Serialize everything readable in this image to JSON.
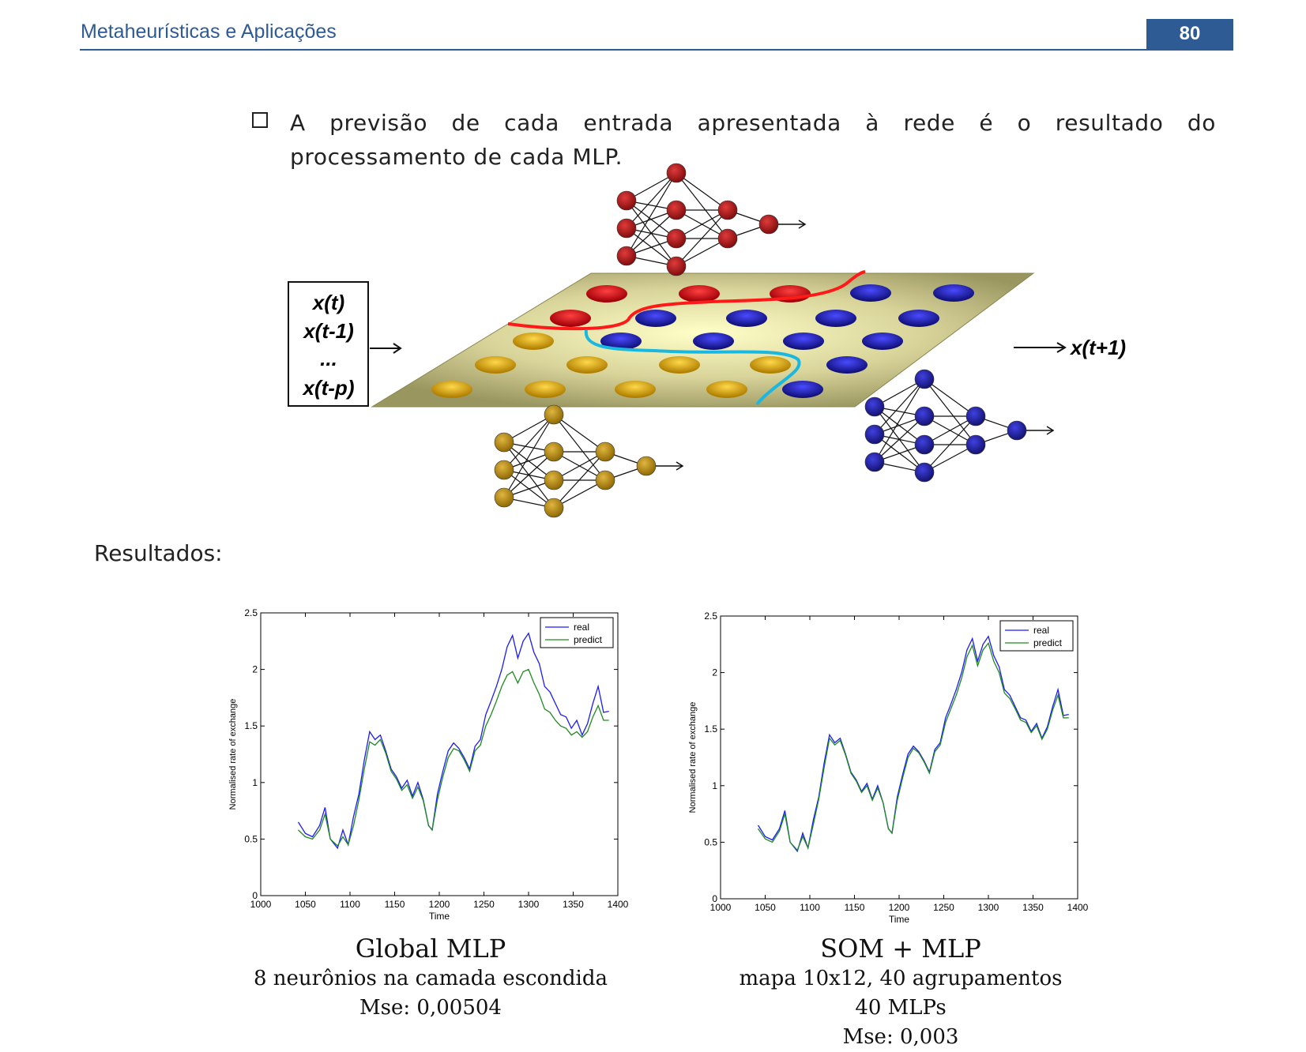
{
  "header": {
    "title": "Metaheurísticas e Aplicações",
    "page_number": "80"
  },
  "bullet_text": "A previsão de cada entrada apresentada à rede é o resultado do processamento de cada MLP.",
  "diagram": {
    "input_lines": [
      "x(t)",
      "x(t-1)",
      "...",
      "x(t-p)"
    ],
    "output_label": "x(t+1)",
    "colors": {
      "red": "#c8101a",
      "blue": "#1c1ca8",
      "gold": "#d4a300",
      "plane": "#b8b37a"
    }
  },
  "section_label": "Resultados:",
  "chart_data": [
    {
      "type": "line",
      "xlabel": "Time",
      "ylabel": "Normalised rate of exchange",
      "xlim": [
        1000,
        1400
      ],
      "ylim": [
        0,
        2.5
      ],
      "xticks": [
        "1000",
        "1050",
        "1100",
        "1150",
        "1200",
        "1250",
        "1300",
        "1350",
        "1400"
      ],
      "yticks": [
        "0",
        "0.5",
        "1",
        "1.5",
        "2",
        "2.5"
      ],
      "legend_position": "top-right",
      "series": [
        {
          "name": "real",
          "color": "#1a1aff",
          "x": [
            1042,
            1050,
            1058,
            1066,
            1072,
            1078,
            1086,
            1092,
            1098,
            1104,
            1110,
            1116,
            1122,
            1128,
            1134,
            1140,
            1146,
            1152,
            1158,
            1164,
            1170,
            1176,
            1182,
            1188,
            1192,
            1198,
            1204,
            1210,
            1216,
            1222,
            1228,
            1234,
            1240,
            1246,
            1252,
            1258,
            1264,
            1270,
            1276,
            1282,
            1288,
            1294,
            1300,
            1306,
            1312,
            1318,
            1324,
            1330,
            1336,
            1342,
            1348,
            1354,
            1360,
            1366,
            1372,
            1378,
            1384,
            1390
          ],
          "y": [
            0.65,
            0.55,
            0.52,
            0.62,
            0.78,
            0.5,
            0.42,
            0.58,
            0.45,
            0.7,
            0.9,
            1.2,
            1.45,
            1.38,
            1.42,
            1.28,
            1.12,
            1.05,
            0.95,
            1.02,
            0.88,
            1.0,
            0.85,
            0.62,
            0.58,
            0.9,
            1.1,
            1.28,
            1.35,
            1.3,
            1.22,
            1.12,
            1.32,
            1.38,
            1.6,
            1.72,
            1.85,
            2.0,
            2.2,
            2.3,
            2.1,
            2.25,
            2.32,
            2.15,
            2.05,
            1.85,
            1.8,
            1.7,
            1.6,
            1.58,
            1.48,
            1.55,
            1.42,
            1.52,
            1.7,
            1.85,
            1.62,
            1.63
          ]
        },
        {
          "name": "predict",
          "color": "#1f8a1f",
          "x": [
            1042,
            1050,
            1058,
            1066,
            1072,
            1078,
            1086,
            1092,
            1098,
            1104,
            1110,
            1116,
            1122,
            1128,
            1134,
            1140,
            1146,
            1152,
            1158,
            1164,
            1170,
            1176,
            1182,
            1188,
            1192,
            1198,
            1204,
            1210,
            1216,
            1222,
            1228,
            1234,
            1240,
            1246,
            1252,
            1258,
            1264,
            1270,
            1276,
            1282,
            1288,
            1294,
            1300,
            1306,
            1312,
            1318,
            1324,
            1330,
            1336,
            1342,
            1348,
            1354,
            1360,
            1366,
            1372,
            1378,
            1384,
            1390
          ],
          "y": [
            0.58,
            0.52,
            0.5,
            0.58,
            0.72,
            0.5,
            0.44,
            0.52,
            0.45,
            0.62,
            0.85,
            1.12,
            1.36,
            1.33,
            1.38,
            1.26,
            1.1,
            1.03,
            0.93,
            0.98,
            0.86,
            0.96,
            0.84,
            0.62,
            0.58,
            0.85,
            1.05,
            1.22,
            1.3,
            1.28,
            1.2,
            1.1,
            1.28,
            1.33,
            1.5,
            1.6,
            1.72,
            1.85,
            1.95,
            1.98,
            1.88,
            1.98,
            2.0,
            1.88,
            1.78,
            1.65,
            1.62,
            1.55,
            1.5,
            1.48,
            1.42,
            1.45,
            1.4,
            1.45,
            1.58,
            1.68,
            1.55,
            1.55
          ]
        }
      ]
    },
    {
      "type": "line",
      "xlabel": "Time",
      "ylabel": "Normalised rate of exchange",
      "xlim": [
        1000,
        1400
      ],
      "ylim": [
        0,
        2.5
      ],
      "xticks": [
        "1000",
        "1050",
        "1100",
        "1150",
        "1200",
        "1250",
        "1300",
        "1350",
        "1400"
      ],
      "yticks": [
        "0",
        "0.5",
        "1",
        "1.5",
        "2",
        "2.5"
      ],
      "legend_position": "top-right",
      "series": [
        {
          "name": "real",
          "color": "#1a1aff",
          "x": [
            1042,
            1050,
            1058,
            1066,
            1072,
            1078,
            1086,
            1092,
            1098,
            1104,
            1110,
            1116,
            1122,
            1128,
            1134,
            1140,
            1146,
            1152,
            1158,
            1164,
            1170,
            1176,
            1182,
            1188,
            1192,
            1198,
            1204,
            1210,
            1216,
            1222,
            1228,
            1234,
            1240,
            1246,
            1252,
            1258,
            1264,
            1270,
            1276,
            1282,
            1288,
            1294,
            1300,
            1306,
            1312,
            1318,
            1324,
            1330,
            1336,
            1342,
            1348,
            1354,
            1360,
            1366,
            1372,
            1378,
            1384,
            1390
          ],
          "y": [
            0.65,
            0.55,
            0.52,
            0.62,
            0.78,
            0.5,
            0.42,
            0.58,
            0.45,
            0.7,
            0.9,
            1.2,
            1.45,
            1.38,
            1.42,
            1.28,
            1.12,
            1.05,
            0.95,
            1.02,
            0.88,
            1.0,
            0.85,
            0.62,
            0.58,
            0.9,
            1.1,
            1.28,
            1.35,
            1.3,
            1.22,
            1.12,
            1.32,
            1.38,
            1.6,
            1.72,
            1.85,
            2.0,
            2.2,
            2.3,
            2.1,
            2.25,
            2.32,
            2.15,
            2.05,
            1.85,
            1.8,
            1.7,
            1.6,
            1.58,
            1.48,
            1.55,
            1.42,
            1.52,
            1.7,
            1.85,
            1.62,
            1.63
          ]
        },
        {
          "name": "predict",
          "color": "#1f8a1f",
          "x": [
            1042,
            1050,
            1058,
            1066,
            1072,
            1078,
            1086,
            1092,
            1098,
            1104,
            1110,
            1116,
            1122,
            1128,
            1134,
            1140,
            1146,
            1152,
            1158,
            1164,
            1170,
            1176,
            1182,
            1188,
            1192,
            1198,
            1204,
            1210,
            1216,
            1222,
            1228,
            1234,
            1240,
            1246,
            1252,
            1258,
            1264,
            1270,
            1276,
            1282,
            1288,
            1294,
            1300,
            1306,
            1312,
            1318,
            1324,
            1330,
            1336,
            1342,
            1348,
            1354,
            1360,
            1366,
            1372,
            1378,
            1384,
            1390
          ],
          "y": [
            0.62,
            0.53,
            0.5,
            0.6,
            0.75,
            0.5,
            0.43,
            0.55,
            0.45,
            0.66,
            0.88,
            1.16,
            1.42,
            1.36,
            1.4,
            1.27,
            1.11,
            1.04,
            0.94,
            1.0,
            0.87,
            0.98,
            0.85,
            0.62,
            0.58,
            0.87,
            1.07,
            1.25,
            1.33,
            1.29,
            1.21,
            1.11,
            1.3,
            1.36,
            1.56,
            1.68,
            1.8,
            1.95,
            2.14,
            2.24,
            2.06,
            2.2,
            2.26,
            2.1,
            2.0,
            1.82,
            1.77,
            1.68,
            1.58,
            1.56,
            1.47,
            1.53,
            1.41,
            1.5,
            1.67,
            1.8,
            1.6,
            1.6
          ]
        }
      ]
    }
  ],
  "captions": [
    {
      "title": "Global MLP",
      "lines": [
        "8 neurônios na camada escondida",
        "Mse: 0,00504"
      ]
    },
    {
      "title": "SOM + MLP",
      "lines": [
        "mapa 10x12, 40 agrupamentos",
        "40 MLPs",
        "Mse: 0,003"
      ]
    }
  ]
}
